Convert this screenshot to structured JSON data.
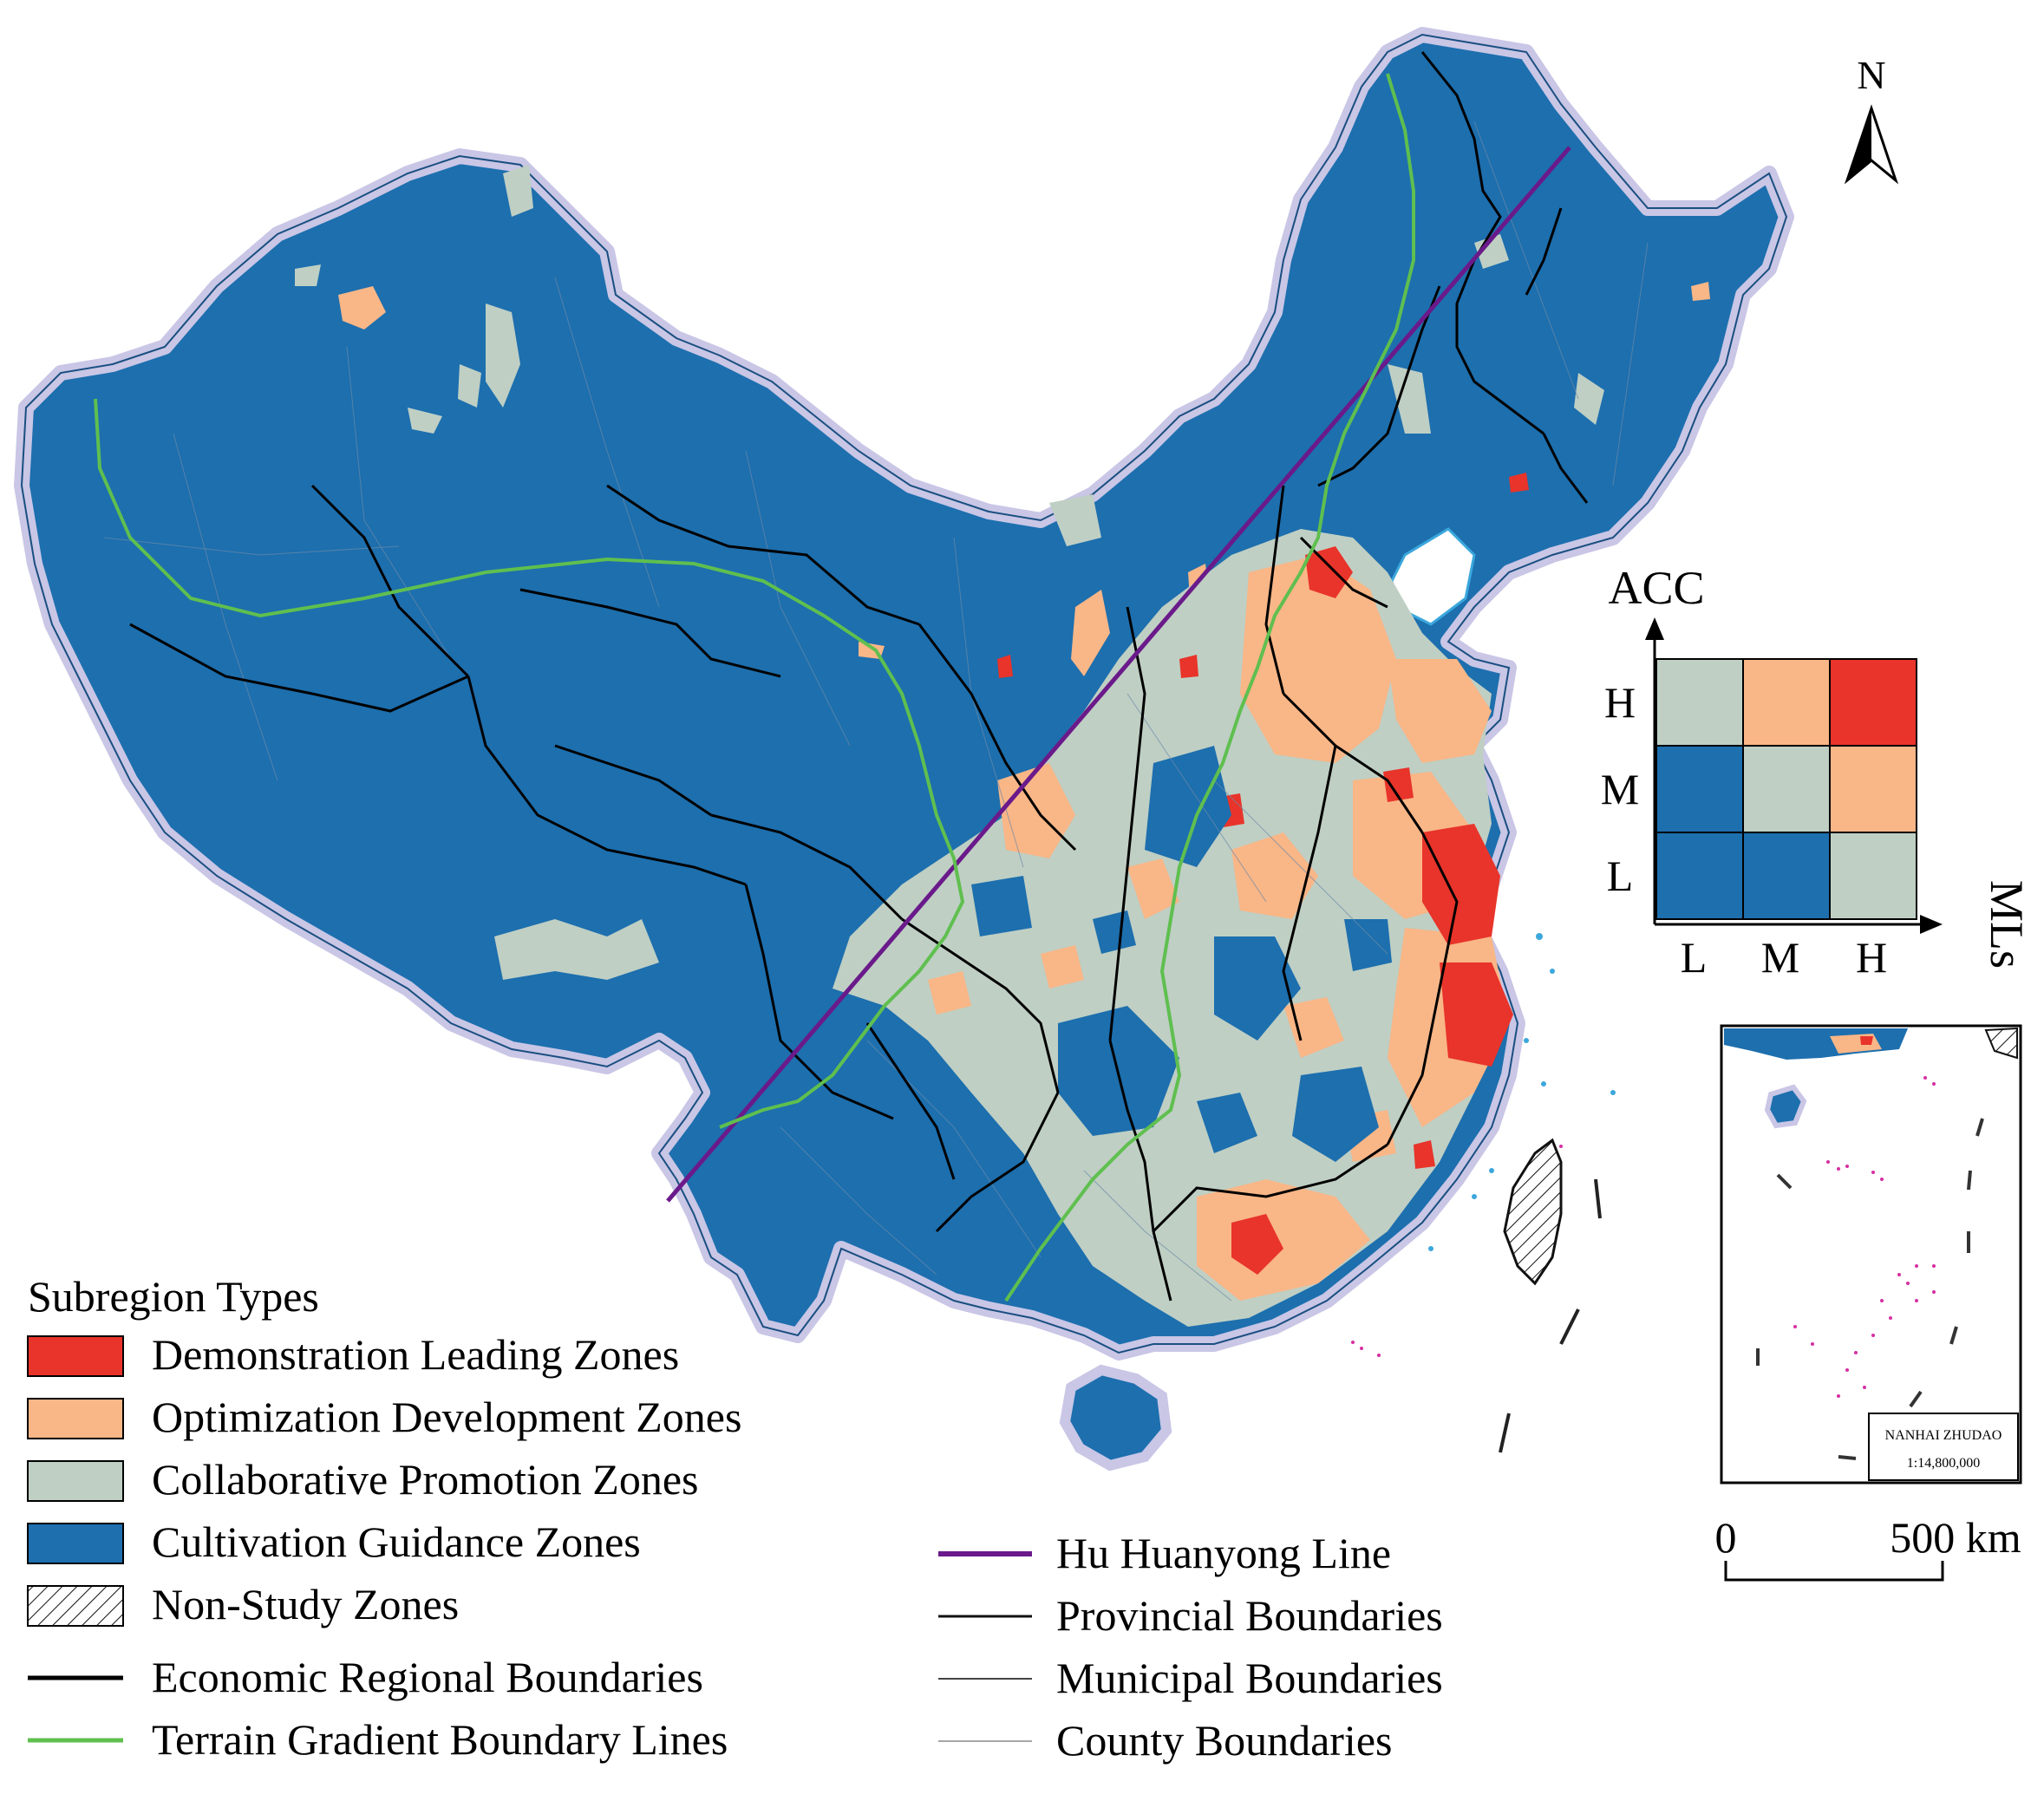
{
  "north_label": "N",
  "matrix": {
    "y_axis_label": "ACC",
    "x_axis_label": "MLs",
    "row_labels": [
      "H",
      "M",
      "L"
    ],
    "col_labels": [
      "L",
      "M",
      "H"
    ],
    "cells": [
      [
        "collab",
        "optim",
        "demo"
      ],
      [
        "cultiv",
        "collab",
        "optim"
      ],
      [
        "cultiv",
        "cultiv",
        "collab"
      ]
    ]
  },
  "inset": {
    "title": "NANHAI ZHUDAO",
    "scale": "1:14,800,000"
  },
  "scale_bar": {
    "start": "0",
    "end": "500 km"
  },
  "legend": {
    "title": "Subregion Types",
    "zones": [
      {
        "key": "demo",
        "label": "Demonstration Leading Zones"
      },
      {
        "key": "optim",
        "label": "Optimization Development Zones"
      },
      {
        "key": "collab",
        "label": "Collaborative Promotion Zones"
      },
      {
        "key": "cultiv",
        "label": "Cultivation Guidance Zones"
      },
      {
        "key": "nonstudy",
        "label": "Non-Study Zones"
      }
    ],
    "lines_left": [
      {
        "key": "economic",
        "label": "Economic Regional Boundaries"
      },
      {
        "key": "terrain",
        "label": "Terrain Gradient Boundary Lines"
      }
    ],
    "lines_right": [
      {
        "key": "hu",
        "label": "Hu Huanyong Line"
      },
      {
        "key": "provincial",
        "label": "Provincial Boundaries"
      },
      {
        "key": "municipal",
        "label": "Municipal Boundaries"
      },
      {
        "key": "county",
        "label": "County Boundaries"
      }
    ]
  },
  "colors": {
    "demo": "#e8342a",
    "optim": "#f9b687",
    "collab": "#bfcfc4",
    "cultiv": "#1d6fae",
    "halo": "#c9c6e6",
    "hu": "#6a1a8a",
    "terrain": "#5fbf4f",
    "economic": "#000000",
    "provincial": "#111111",
    "municipal": "#444444",
    "county": "#8a8a8a"
  }
}
